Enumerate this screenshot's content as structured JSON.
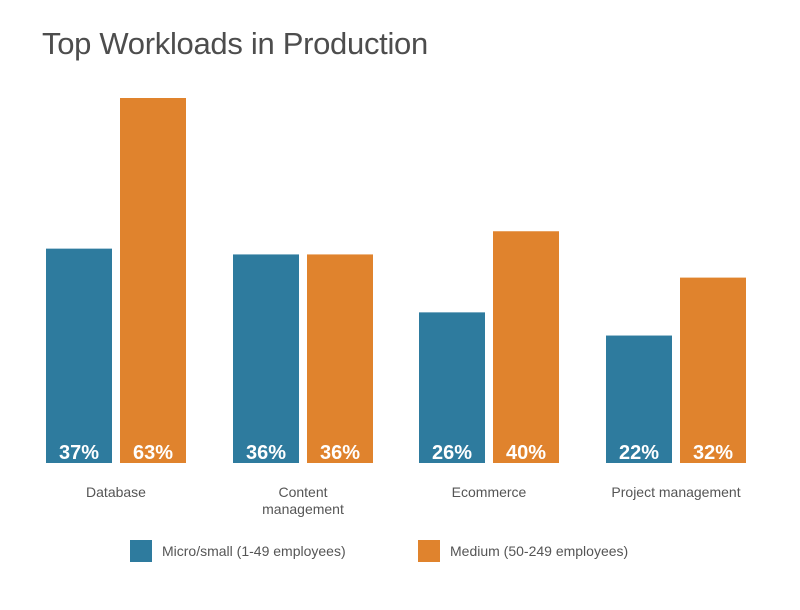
{
  "title": "Top Workloads in Production",
  "colors": {
    "series_1": "#2e7b9e",
    "series_2": "#e0832d",
    "text": "#555555",
    "value_label": "#ffffff"
  },
  "legend": [
    {
      "label": "Micro/small (1-49 employees)"
    },
    {
      "label": "Medium (50-249 employees)"
    }
  ],
  "chart_data": {
    "type": "bar",
    "title": "Top Workloads in Production",
    "xlabel": "",
    "ylabel": "",
    "ylim": [
      0,
      63
    ],
    "grid": false,
    "legend_position": "bottom",
    "categories": [
      [
        "Database"
      ],
      [
        "Content",
        "management"
      ],
      [
        "Ecommerce"
      ],
      [
        "Project management"
      ]
    ],
    "series": [
      {
        "name": "Micro/small (1-49 employees)",
        "values": [
          37,
          36,
          26,
          22
        ],
        "labels": [
          "37%",
          "36%",
          "26%",
          "22%"
        ]
      },
      {
        "name": "Medium (50-249 employees)",
        "values": [
          63,
          36,
          40,
          32
        ],
        "labels": [
          "63%",
          "36%",
          "40%",
          "32%"
        ]
      }
    ]
  }
}
